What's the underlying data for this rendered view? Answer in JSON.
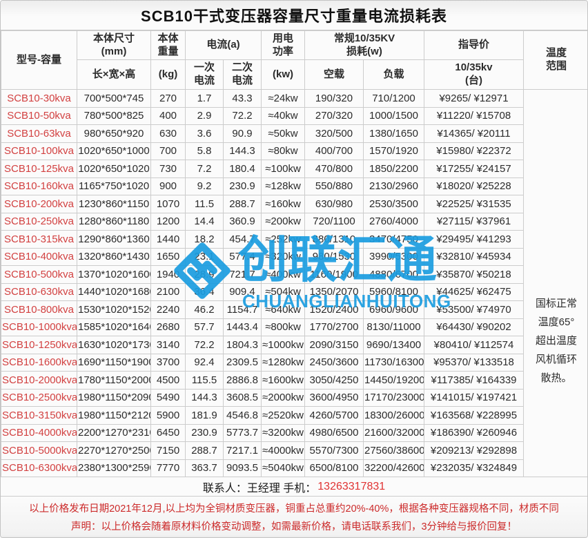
{
  "title": "SCB10干式变压器容量尺寸重量电流损耗表",
  "headers": {
    "model": "型号-容量",
    "size": "本体尺寸\n(mm)",
    "size_sub": "长×宽×高",
    "weight": "本体\n重量",
    "weight_sub": "(kg)",
    "current": "电流(a)",
    "current_primary": "一次\n电流",
    "current_secondary": "二次\n电流",
    "power": "用电\n功率",
    "power_sub": "(kw)",
    "loss": "常规10/35KV\n损耗(w)",
    "loss_noload": "空载",
    "loss_load": "负载",
    "price": "指导价",
    "price_sub": "10/35kv\n(台)",
    "temperature": "温度\n范围"
  },
  "table": {
    "rows": [
      [
        "SCB10-30kva",
        "700*500*745",
        "270",
        "1.7",
        "43.3",
        "≈24kw",
        "190/320",
        "710/1200",
        "¥9265/ ¥12971"
      ],
      [
        "SCB10-50kva",
        "780*500*825",
        "400",
        "2.9",
        "72.2",
        "≈40kw",
        "270/320",
        "1000/1500",
        "¥11220/ ¥15708"
      ],
      [
        "SCB10-63kva",
        "980*650*920",
        "630",
        "3.6",
        "90.9",
        "≈50kw",
        "320/500",
        "1380/1650",
        "¥14365/ ¥20111"
      ],
      [
        "SCB10-100kva",
        "1020*650*1000",
        "700",
        "5.8",
        "144.3",
        "≈80kw",
        "400/700",
        "1570/1920",
        "¥15980/ ¥22372"
      ],
      [
        "SCB10-125kva",
        "1020*650*1020",
        "730",
        "7.2",
        "180.4",
        "≈100kw",
        "470/800",
        "1850/2200",
        "¥17255/ ¥24157"
      ],
      [
        "SCB10-160kva",
        "1165*750*1020",
        "900",
        "9.2",
        "230.9",
        "≈128kw",
        "550/880",
        "2130/2960",
        "¥18020/ ¥25228"
      ],
      [
        "SCB10-200kva",
        "1230*860*1150",
        "1070",
        "11.5",
        "288.7",
        "≈160kw",
        "630/980",
        "2530/3500",
        "¥22525/ ¥31535"
      ],
      [
        "SCB10-250kva",
        "1280*860*1180",
        "1200",
        "14.4",
        "360.9",
        "≈200kw",
        "720/1100",
        "2760/4000",
        "¥27115/ ¥37961"
      ],
      [
        "SCB10-315kva",
        "1290*860*1360",
        "1440",
        "18.2",
        "454.7",
        "≈252kw",
        "880/1310",
        "3470/4750",
        "¥29495/ ¥41293"
      ],
      [
        "SCB10-400kva",
        "1320*860*1430",
        "1650",
        "23.1",
        "577.4",
        "≈320kw",
        "980/1530",
        "3990/5300",
        "¥32810/ ¥45934"
      ],
      [
        "SCB10-500kva",
        "1370*1020*1600",
        "1940",
        "28.9",
        "721.7",
        "≈400kw",
        "1160/1900",
        "4880/6700",
        "¥35870/ ¥50218"
      ],
      [
        "SCB10-630kva",
        "1440*1020*1680",
        "2100",
        "36.4",
        "909.4",
        "≈504kw",
        "1350/2070",
        "5960/8100",
        "¥44625/ ¥62475"
      ],
      [
        "SCB10-800kva",
        "1530*1020*1520",
        "2240",
        "46.2",
        "1154.7",
        "≈640kw",
        "1520/2400",
        "6960/9600",
        "¥53500/ ¥74970"
      ],
      [
        "SCB10-1000kva",
        "1585*1020*1640",
        "2680",
        "57.7",
        "1443.4",
        "≈800kw",
        "1770/2700",
        "8130/11000",
        "¥64430/ ¥90202"
      ],
      [
        "SCB10-1250kva",
        "1630*1020*1730",
        "3140",
        "72.2",
        "1804.3",
        "≈1000kw",
        "2090/3150",
        "9690/13400",
        "¥80410/ ¥112574"
      ],
      [
        "SCB10-1600kva",
        "1690*1150*1900",
        "3700",
        "92.4",
        "2309.5",
        "≈1280kw",
        "2450/3600",
        "11730/16300",
        "¥95370/ ¥133518"
      ],
      [
        "SCB10-2000kva",
        "1780*1150*2000",
        "4500",
        "115.5",
        "2886.8",
        "≈1600kw",
        "3050/4250",
        "14450/19200",
        "¥117385/ ¥164339"
      ],
      [
        "SCB10-2500kva",
        "1980*1150*2090",
        "5490",
        "144.3",
        "3608.5",
        "≈2000kw",
        "3600/4950",
        "17170/23000",
        "¥141015/ ¥197421"
      ],
      [
        "SCB10-3150kva",
        "1980*1150*2120",
        "5900",
        "181.9",
        "4546.8",
        "≈2520kw",
        "4260/5700",
        "18300/26000",
        "¥163568/ ¥228995"
      ],
      [
        "SCB10-4000kva",
        "2200*1270*2310",
        "6450",
        "230.9",
        "5773.7",
        "≈3200kw",
        "4980/6500",
        "21600/32000",
        "¥186390/ ¥260946"
      ],
      [
        "SCB10-5000kva",
        "2270*1270*2500",
        "7150",
        "288.7",
        "7217.1",
        "≈4000kw",
        "5570/7300",
        "27560/38600",
        "¥209213/ ¥292898"
      ],
      [
        "SCB10-6300kva",
        "2380*1300*2590",
        "7770",
        "363.7",
        "9093.5",
        "≈5040kw",
        "6500/8100",
        "32200/42600",
        "¥232035/ ¥324849"
      ]
    ]
  },
  "temperature_note": [
    "国标正常",
    "温度65°",
    "超出温度",
    "风机循环",
    "散热。"
  ],
  "watermark": {
    "text": "创联汇通",
    "subtext": "CHUANGLIANHUITONG",
    "color": "#1b9de0"
  },
  "footer": {
    "contact_label": "联系人：王经理 手机：",
    "phone": "13263317831",
    "disclaimer_line1": "以上价格发布日期2021年12月,以上均为全铜材质变压器，铜重占总重约20%-40%，根据各种变压器规格不同，材质不同",
    "disclaimer_line2": "声明：以上价格会随着原材料价格变动调整，如需最新价格，请电话联系我们，3分钟给与报价回复！"
  },
  "colors": {
    "watermark_blue": "#1b9de0",
    "model_red": "#d24040",
    "disclaimer_red": "#cc2a2a",
    "grid_gray": "#cccccc"
  }
}
